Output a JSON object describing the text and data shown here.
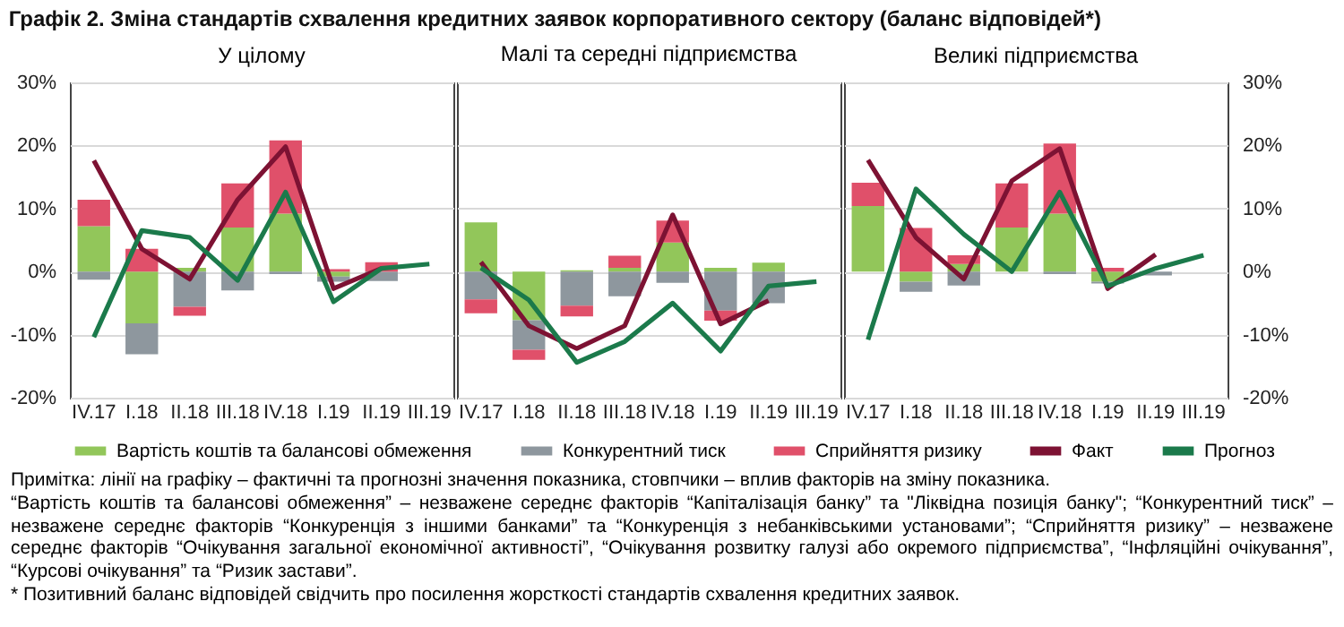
{
  "chart_data": [
    {
      "type": "bar",
      "title": "Графік 2. Зміна стандартів схвалення кредитних заявок корпоративного сектору (баланс відповідей*)",
      "subtitle": "У цілому",
      "stacked": true,
      "categories": [
        "IV.17",
        "I.18",
        "II.18",
        "III.18",
        "IV.18",
        "I.19",
        "II.19",
        "III.19"
      ],
      "series": [
        {
          "name": "Вартість коштів та балансові обмеження",
          "color": "#92c65a",
          "values": [
            7.2,
            -8.2,
            0.6,
            7.0,
            9.2,
            -0.8,
            0,
            null
          ]
        },
        {
          "name": "Конкурентний тиск",
          "color": "#8e979e",
          "values": [
            -1.3,
            -4.9,
            -5.6,
            -3.0,
            -0.4,
            -0.8,
            -1.5,
            null
          ]
        },
        {
          "name": "Сприйняття ризику",
          "color": "#e0506a",
          "values": [
            4.2,
            3.6,
            -1.4,
            7.0,
            11.6,
            0.4,
            1.5,
            null
          ]
        },
        {
          "name": "Факт",
          "type": "line",
          "color": "#7d1233",
          "values": [
            17.6,
            3.6,
            -1.2,
            11.4,
            19.8,
            -2.7,
            0.5,
            null
          ]
        },
        {
          "name": "Прогноз",
          "type": "line",
          "color": "#1b7a4b",
          "values": [
            -10.4,
            6.5,
            5.4,
            -1.4,
            12.6,
            -4.8,
            0.5,
            1.2
          ]
        }
      ],
      "ylim": [
        -20,
        30
      ],
      "yticks": [
        {
          "value": -20,
          "label": "-20%"
        },
        {
          "value": -10,
          "label": "-10%"
        },
        {
          "value": 0,
          "label": "0%"
        },
        {
          "value": 10,
          "label": "10%"
        },
        {
          "value": 20,
          "label": "20%"
        },
        {
          "value": 30,
          "label": "30%"
        }
      ],
      "grid": "y",
      "legend": "bottom",
      "annotations": [
        "Примітка: лінії на графіку – фактичні та прогнозні значення показника, стовпчики – вплив факторів на зміну показника.",
        "“Вартість коштів та балансові обмеження” – незважене середнє факторів “Капіталізація банку” та \"Ліквідна позиція банку\"; “Конкурентний тиск” – незважене середнє факторів “Конкуренція з іншими банками” та “Конкуренція з небанківськими установами”; “Сприйняття ризику” – незважене середнє факторів “Очікування загальної економічної активності”, “Очікування розвитку галузі або окремого підприємства”, “Інфляційні очікування”, “Курсові очікування” та “Ризик застави”.",
        "* Позитивний баланс відповідей свідчить про посилення жорсткості стандартів схвалення кредитних заявок."
      ]
    },
    {
      "type": "bar",
      "title": "Малі та середні підприємства",
      "stacked": true,
      "categories": [
        "IV.17",
        "I.18",
        "II.18",
        "III.18",
        "IV.18",
        "I.19",
        "II.19",
        "III.19"
      ],
      "series": [
        {
          "color": "#92c65a",
          "values": [
            7.8,
            -7.7,
            0.2,
            0.6,
            4.6,
            0.6,
            1.4,
            null
          ]
        },
        {
          "color": "#8e979e",
          "values": [
            -4.4,
            -4.7,
            -5.4,
            -3.9,
            -1.8,
            -6.2,
            -5.0,
            null
          ]
        },
        {
          "color": "#e0506a",
          "values": [
            -2.2,
            -1.6,
            -1.7,
            1.9,
            3.5,
            -1.6,
            null,
            null
          ]
        },
        {
          "type": "line",
          "color": "#7d1233",
          "values": [
            1.5,
            -8.6,
            -12.2,
            -8.6,
            9.0,
            -8.3,
            -4.6,
            null
          ]
        },
        {
          "type": "line",
          "color": "#1b7a4b",
          "values": [
            0.6,
            -4.5,
            -14.4,
            -11.1,
            -5.0,
            -12.6,
            -2.3,
            -1.6
          ]
        }
      ],
      "ylim": [
        -20,
        30
      ],
      "yticks": [
        {
          "value": -20,
          "label": null
        },
        {
          "value": -10,
          "label": null
        },
        {
          "value": 0,
          "label": null
        },
        {
          "value": 10,
          "label": null
        },
        {
          "value": 20,
          "label": null
        },
        {
          "value": 30,
          "label": null
        }
      ],
      "grid": "y",
      "tick_labels": "x"
    },
    {
      "type": "bar",
      "title": "Великі підприємства",
      "stacked": true,
      "categories": [
        "IV.17",
        "I.18",
        "II.18",
        "III.18",
        "IV.18",
        "I.19",
        "II.19",
        "III.19"
      ],
      "series": [
        {
          "color": "#92c65a",
          "values": [
            10.4,
            -1.6,
            1.2,
            7.0,
            9.2,
            -1.6,
            null,
            null
          ]
        },
        {
          "color": "#8e979e",
          "values": [
            null,
            -1.6,
            -2.2,
            null,
            -0.4,
            -0.3,
            -0.6,
            null
          ]
        },
        {
          "color": "#e0506a",
          "values": [
            3.7,
            6.9,
            1.4,
            7.0,
            11.1,
            0.6,
            null,
            null
          ]
        },
        {
          "type": "line",
          "color": "#7d1233",
          "values": [
            17.7,
            5.4,
            -1.2,
            14.4,
            19.5,
            -2.7,
            2.7,
            null
          ]
        },
        {
          "type": "line",
          "color": "#1b7a4b",
          "values": [
            -10.8,
            13.1,
            5.9,
            0,
            12.6,
            -2.3,
            0.5,
            2.6
          ]
        }
      ],
      "ylim": [
        -20,
        30
      ],
      "yticks": [
        {
          "value": -20,
          "label": "-20%"
        },
        {
          "value": -10,
          "label": "-10%"
        },
        {
          "value": 0,
          "label": "0%"
        },
        {
          "value": 10,
          "label": "10%"
        },
        {
          "value": 20,
          "label": "20%"
        },
        {
          "value": 30,
          "label": "30%"
        }
      ],
      "grid": "y"
    }
  ]
}
